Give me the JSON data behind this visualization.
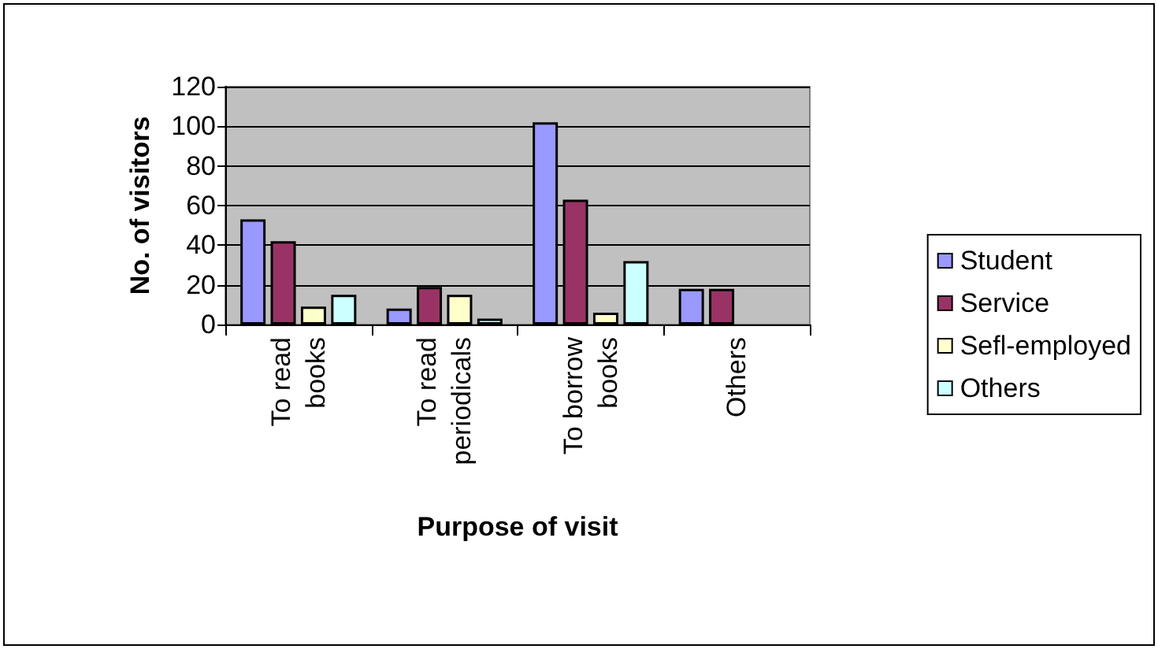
{
  "chart_data": {
    "type": "bar",
    "xlabel": "Purpose of visit",
    "ylabel": "No. of visitors",
    "categories": [
      "To read\nbooks",
      "To read\nperiodicals",
      "To borrow\nbooks",
      "Others"
    ],
    "series": [
      {
        "name": "Student",
        "color": "#9999ff",
        "values": [
          53,
          8,
          102,
          18
        ]
      },
      {
        "name": "Service",
        "color": "#993366",
        "values": [
          42,
          19,
          63,
          18
        ]
      },
      {
        "name": "Sefl-employed",
        "color": "#ffffcc",
        "values": [
          9,
          15,
          6,
          null
        ]
      },
      {
        "name": "Others",
        "color": "#ccffff",
        "values": [
          15,
          3,
          32,
          null
        ]
      }
    ],
    "ylim": [
      0,
      120
    ],
    "yticks": [
      0,
      20,
      40,
      60,
      80,
      100,
      120
    ],
    "grid": "y",
    "legend": "right"
  }
}
